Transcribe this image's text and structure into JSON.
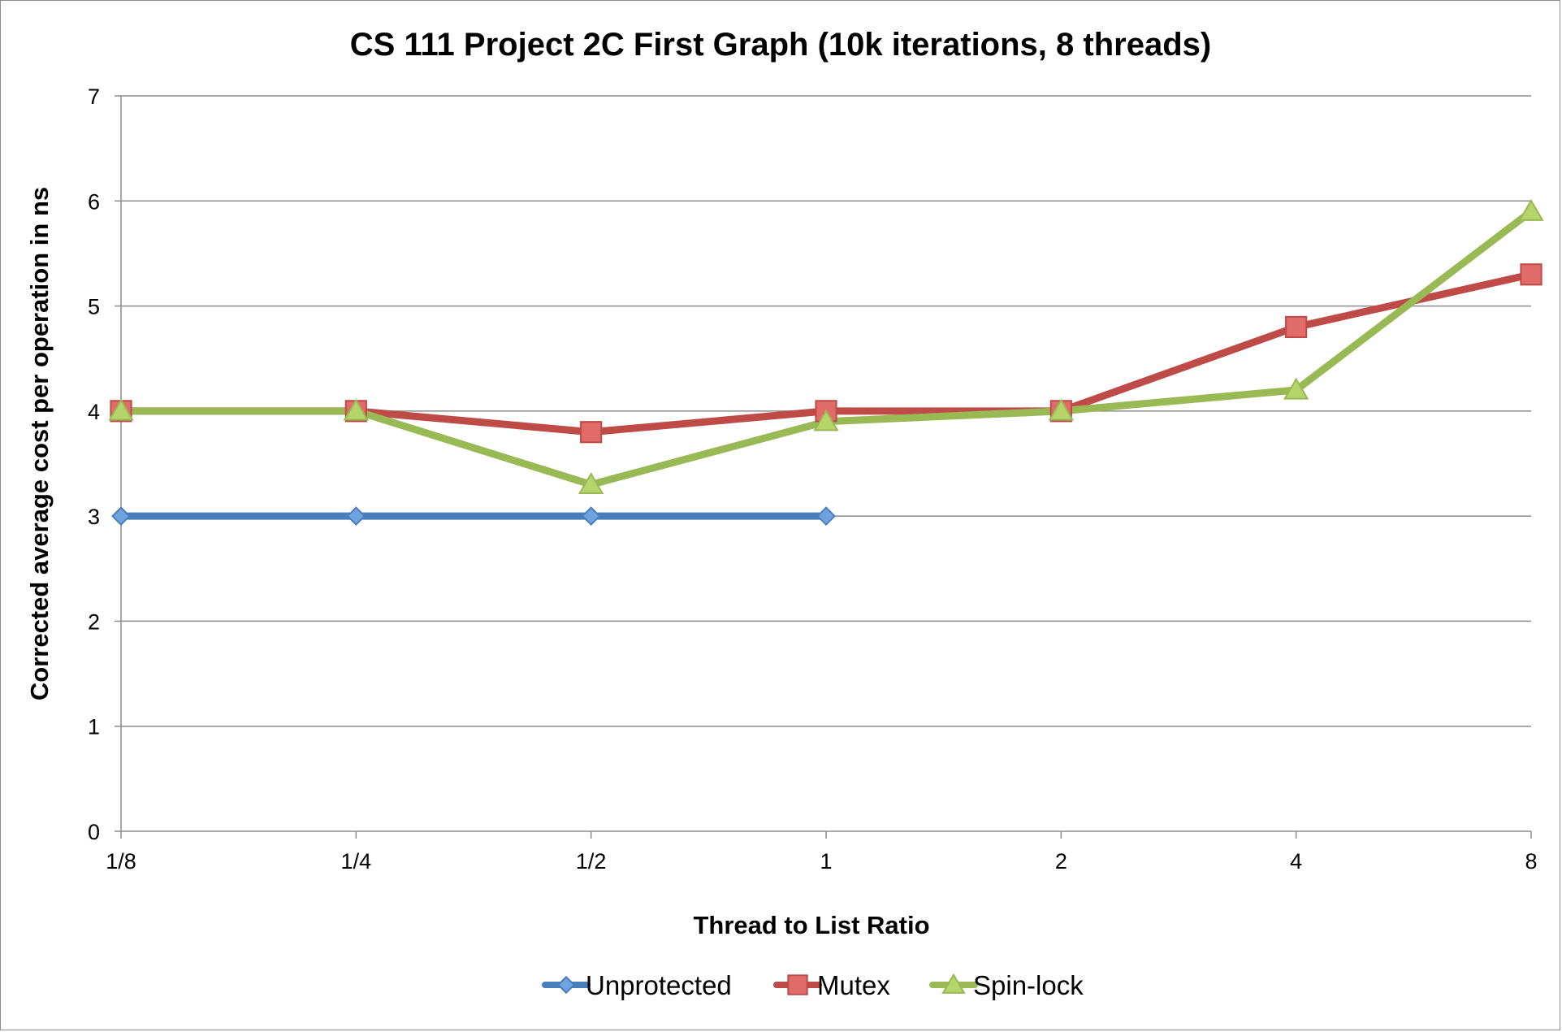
{
  "chart_data": {
    "type": "line",
    "title": "CS 111 Project 2C First Graph (10k iterations, 8 threads)",
    "xlabel": "Thread to List Ratio",
    "ylabel": "Corrected average cost per operation in ns",
    "categories": [
      "1/8",
      "1/4",
      "1/2",
      "1",
      "2",
      "4",
      "8"
    ],
    "ylim": [
      0,
      7
    ],
    "yticks": [
      "0",
      "1",
      "2",
      "3",
      "4",
      "5",
      "6",
      "7"
    ],
    "grid": true,
    "legend_position": "bottom",
    "series": [
      {
        "name": "Unprotected",
        "values": [
          3,
          3,
          3,
          3,
          null,
          null,
          null
        ],
        "color": "#4a7ebb",
        "marker": "diamond",
        "marker_fill": "#6fa3e0"
      },
      {
        "name": "Mutex",
        "values": [
          4,
          4,
          3.8,
          4,
          4,
          4.8,
          5.3
        ],
        "color": "#be4b48",
        "marker": "square",
        "marker_fill": "#e06b68"
      },
      {
        "name": "Spin-lock",
        "values": [
          4,
          4,
          3.3,
          3.9,
          4,
          4.2,
          5.9
        ],
        "color": "#98b954",
        "marker": "triangle",
        "marker_fill": "#b5d56a"
      }
    ]
  }
}
